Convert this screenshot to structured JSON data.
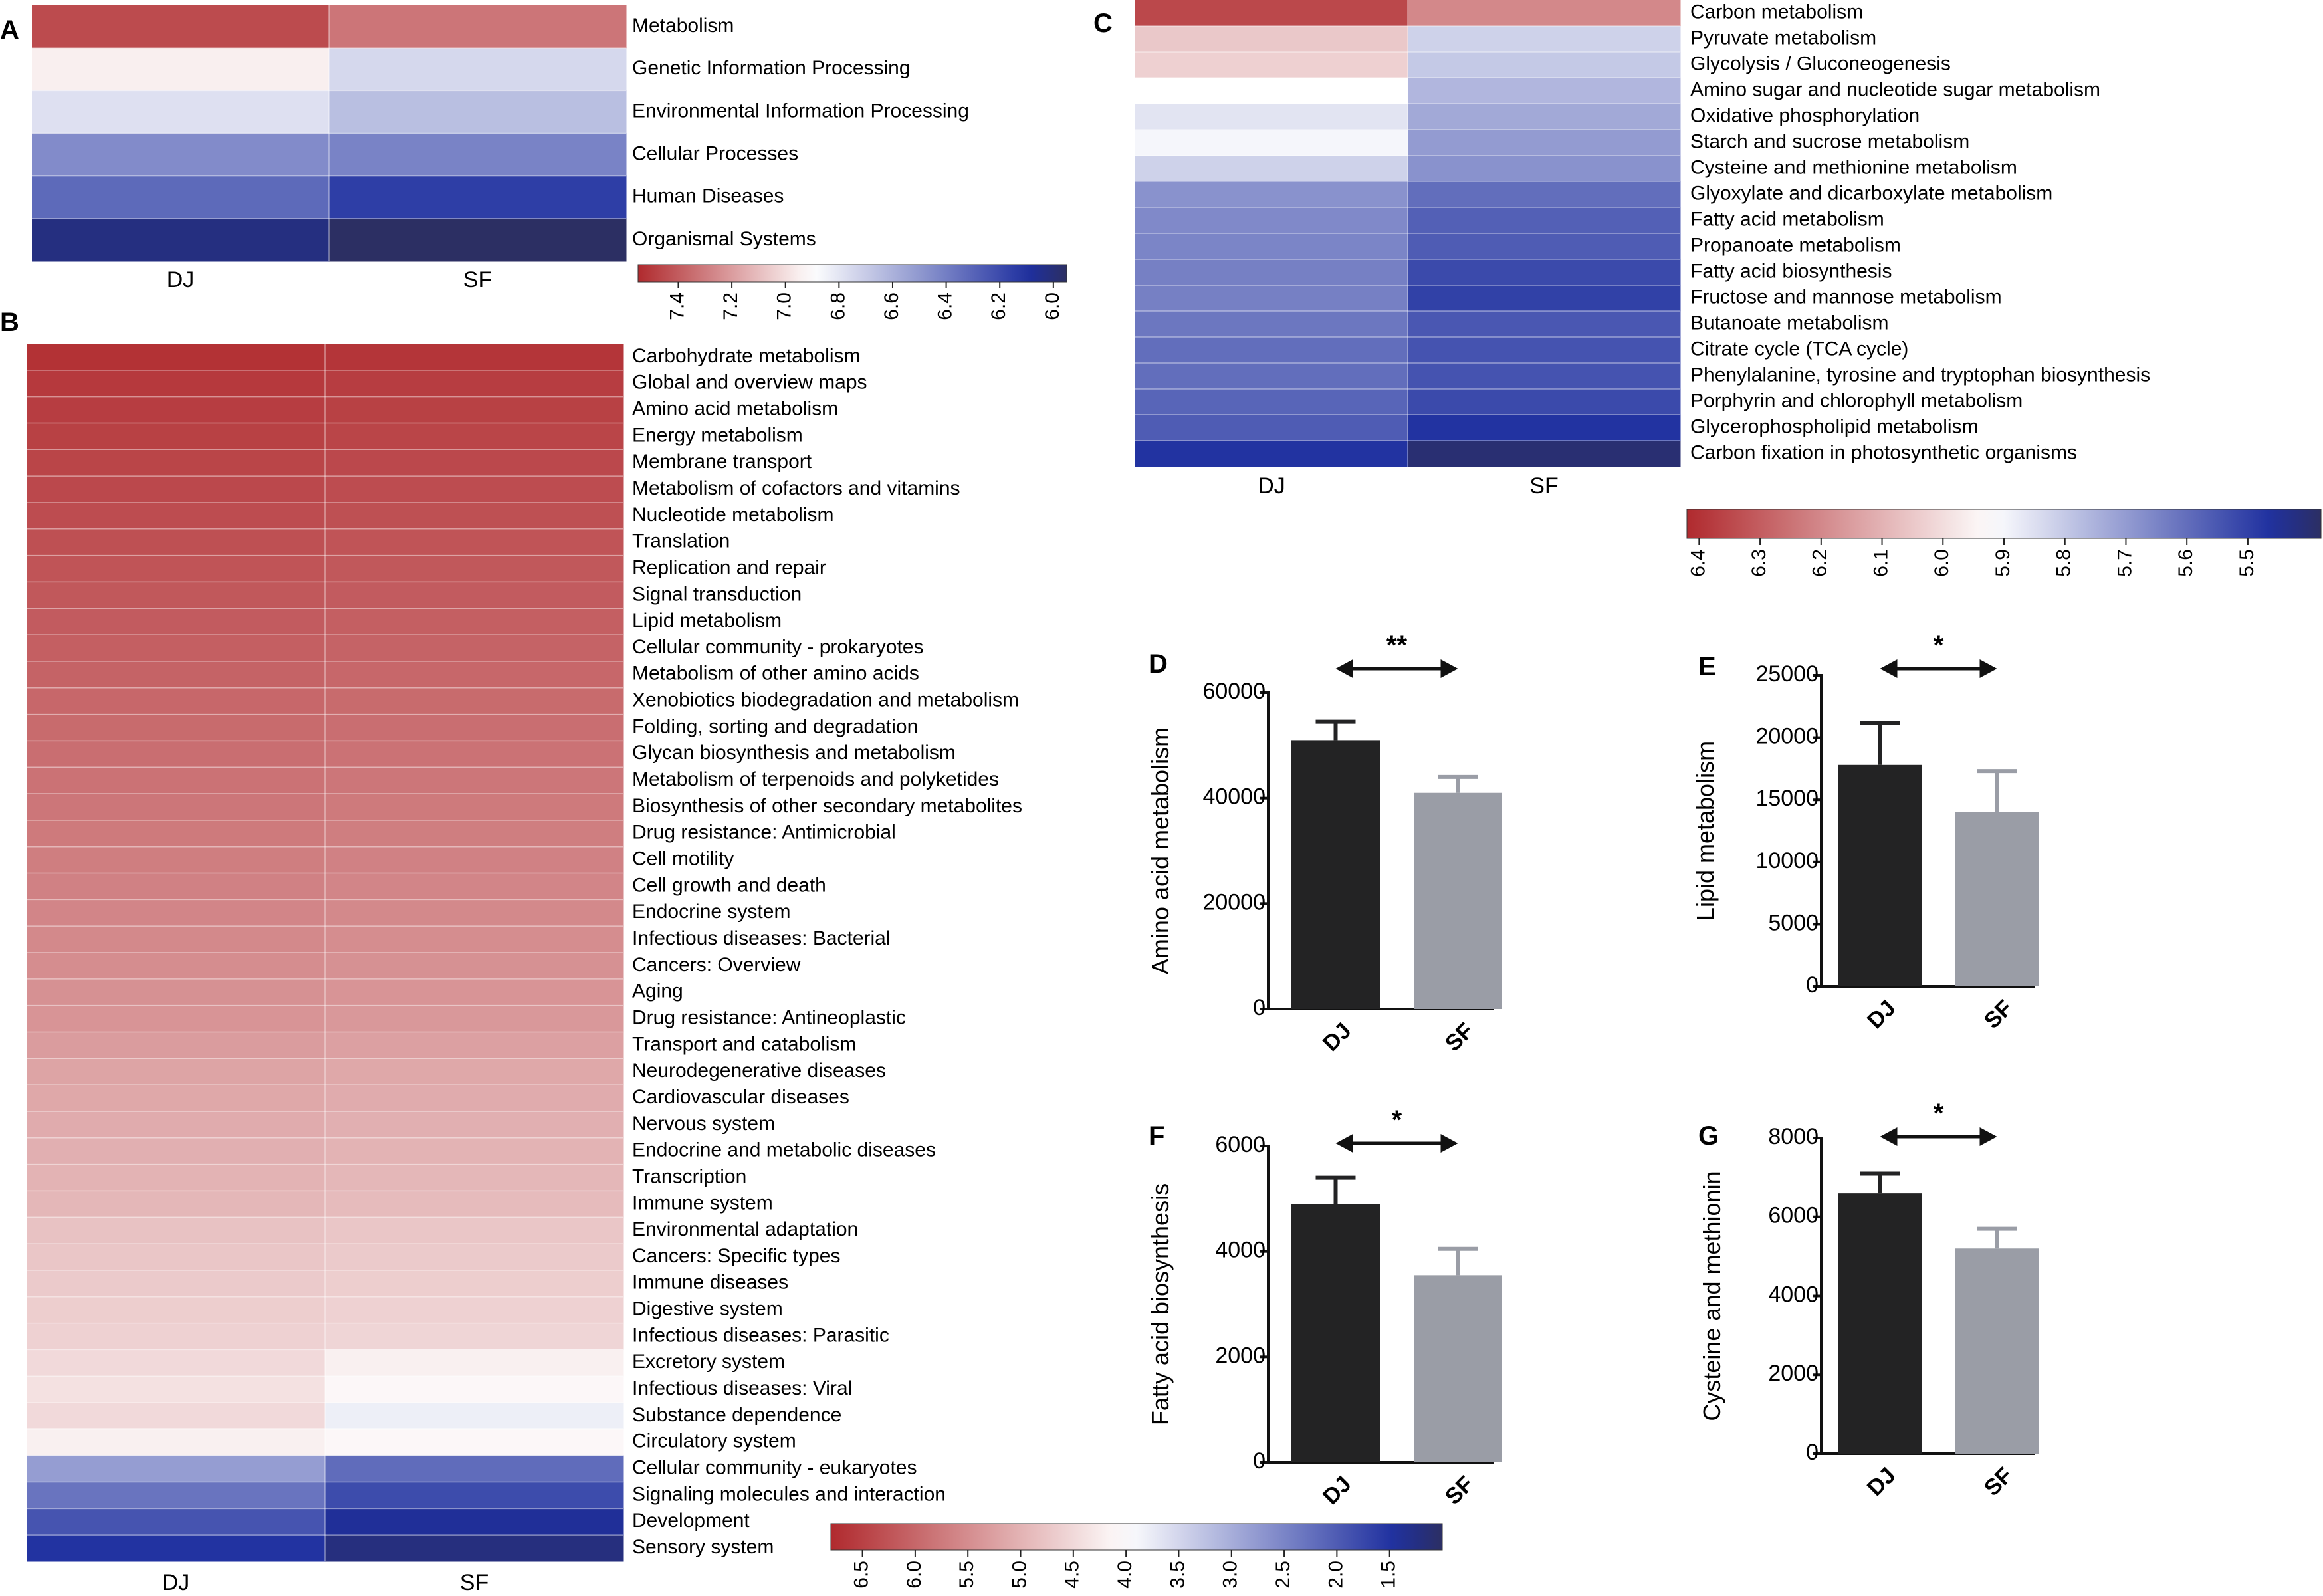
{
  "palette": {
    "heat_red": "#b02a2e",
    "heat_white": "#ffffff",
    "heat_blue": "#1e2f9f",
    "heat_navy": "#2c2f63",
    "bar_dj": "#232324",
    "bar_sf": "#9a9da6"
  },
  "chart_data": [
    {
      "panel": "A",
      "type": "heatmap",
      "columns": [
        "DJ",
        "SF"
      ],
      "rows": [
        "Metabolism",
        "Genetic Information Processing",
        "Environmental Information Processing",
        "Cellular Processes",
        "Human Diseases",
        "Organismal Systems"
      ],
      "values": [
        [
          7.45,
          7.32
        ],
        [
          6.95,
          6.75
        ],
        [
          6.78,
          6.65
        ],
        [
          6.45,
          6.42
        ],
        [
          6.32,
          6.15
        ],
        [
          6.02,
          5.95
        ]
      ],
      "colorbar": {
        "min": 5.95,
        "max": 7.55,
        "ticks": [
          7.4,
          7.2,
          7.0,
          6.8,
          6.6,
          6.4,
          6.2,
          6.0
        ],
        "red_end": 7.55,
        "white_at": 6.9,
        "blue_end": 5.95
      }
    },
    {
      "panel": "B",
      "type": "heatmap",
      "columns": [
        "DJ",
        "SF"
      ],
      "rows": [
        "Carbohydrate metabolism",
        "Global and overview maps",
        "Amino acid metabolism",
        "Energy metabolism",
        "Membrane transport",
        "Metabolism of cofactors and vitamins",
        "Nucleotide metabolism",
        "Translation",
        "Replication and repair",
        "Signal transduction",
        "Lipid metabolism",
        "Cellular community - prokaryotes",
        "Metabolism of other amino acids",
        "Xenobiotics biodegradation and metabolism",
        "Folding, sorting and degradation",
        "Glycan biosynthesis and metabolism",
        "Metabolism of terpenoids and polyketides",
        "Biosynthesis of other secondary metabolites",
        "Drug resistance: Antimicrobial",
        "Cell motility",
        "Cell growth and death",
        "Endocrine system",
        "Infectious diseases: Bacterial",
        "Cancers: Overview",
        "Aging",
        "Drug resistance: Antineoplastic",
        "Transport and catabolism",
        "Neurodegenerative diseases",
        "Cardiovascular diseases",
        "Nervous system",
        "Endocrine and metabolic diseases",
        "Transcription",
        "Immune system",
        "Environmental adaptation",
        "Cancers: Specific types",
        "Immune diseases",
        "Digestive system",
        "Infectious diseases: Parasitic",
        "Excretory system",
        "Infectious diseases: Viral",
        "Substance dependence",
        "Circulatory system",
        "Cellular community - eukaryotes",
        "Signaling molecules and interaction",
        "Development",
        "Sensory system"
      ],
      "values": [
        [
          6.7,
          6.65
        ],
        [
          6.6,
          6.55
        ],
        [
          6.55,
          6.5
        ],
        [
          6.5,
          6.45
        ],
        [
          6.45,
          6.4
        ],
        [
          6.4,
          6.35
        ],
        [
          6.35,
          6.3
        ],
        [
          6.3,
          6.25
        ],
        [
          6.25,
          6.2
        ],
        [
          6.2,
          6.15
        ],
        [
          6.15,
          6.1
        ],
        [
          6.1,
          6.05
        ],
        [
          6.05,
          6.0
        ],
        [
          6.0,
          5.95
        ],
        [
          5.95,
          5.9
        ],
        [
          5.9,
          5.85
        ],
        [
          5.85,
          5.8
        ],
        [
          5.8,
          5.75
        ],
        [
          5.75,
          5.7
        ],
        [
          5.7,
          5.65
        ],
        [
          5.65,
          5.6
        ],
        [
          5.6,
          5.55
        ],
        [
          5.55,
          5.5
        ],
        [
          5.5,
          5.45
        ],
        [
          5.45,
          5.4
        ],
        [
          5.4,
          5.35
        ],
        [
          5.3,
          5.25
        ],
        [
          5.2,
          5.15
        ],
        [
          5.15,
          5.1
        ],
        [
          5.1,
          5.05
        ],
        [
          5.05,
          5.0
        ],
        [
          5.0,
          4.95
        ],
        [
          4.95,
          4.9
        ],
        [
          4.8,
          4.75
        ],
        [
          4.75,
          4.7
        ],
        [
          4.7,
          4.65
        ],
        [
          4.65,
          4.6
        ],
        [
          4.6,
          4.55
        ],
        [
          4.5,
          4.2
        ],
        [
          4.4,
          4.1
        ],
        [
          4.5,
          3.8
        ],
        [
          4.2,
          4.1
        ],
        [
          2.8,
          2.2
        ],
        [
          2.3,
          1.8
        ],
        [
          1.9,
          1.4
        ],
        [
          1.5,
          1.2
        ]
      ],
      "colorbar": {
        "min": 1.0,
        "max": 6.8,
        "ticks": [
          6.5,
          6.0,
          5.5,
          5.0,
          4.5,
          4.0,
          3.5,
          3.0,
          2.5,
          2.0,
          1.5
        ],
        "red_end": 6.8,
        "white_at": 4.0,
        "blue_end": 1.0
      }
    },
    {
      "panel": "C",
      "type": "heatmap",
      "columns": [
        "DJ",
        "SF"
      ],
      "rows": [
        "Carbon metabolism",
        "Pyruvate metabolism",
        "Glycolysis / Gluconeogenesis",
        "Amino sugar and nucleotide sugar metabolism",
        "Oxidative phosphorylation",
        "Starch and sucrose metabolism",
        "Cysteine and methionine metabolism",
        "Glyoxylate and dicarboxylate metabolism",
        "Fatty acid metabolism",
        "Propanoate metabolism",
        "Fatty acid biosynthesis",
        "Fructose and mannose metabolism",
        "Butanoate metabolism",
        "Citrate cycle (TCA cycle)",
        "Phenylalanine, tyrosine and tryptophan biosynthesis",
        "Porphyrin and chlorophyll metabolism",
        "Glycerophospholipid metabolism",
        "Carbon fixation in photosynthetic organisms"
      ],
      "values": [
        [
          6.35,
          6.2
        ],
        [
          6.05,
          5.82
        ],
        [
          6.03,
          5.8
        ],
        [
          5.92,
          5.76
        ],
        [
          5.86,
          5.73
        ],
        [
          5.9,
          5.7
        ],
        [
          5.82,
          5.68
        ],
        [
          5.68,
          5.6
        ],
        [
          5.66,
          5.57
        ],
        [
          5.65,
          5.56
        ],
        [
          5.64,
          5.52
        ],
        [
          5.64,
          5.5
        ],
        [
          5.62,
          5.55
        ],
        [
          5.6,
          5.54
        ],
        [
          5.6,
          5.54
        ],
        [
          5.58,
          5.52
        ],
        [
          5.56,
          5.47
        ],
        [
          5.47,
          5.4
        ]
      ],
      "colorbar": {
        "min": 5.38,
        "max": 6.42,
        "ticks": [
          6.4,
          6.3,
          6.2,
          6.1,
          6.0,
          5.9,
          5.8,
          5.7,
          5.6,
          5.5
        ],
        "red_end": 6.42,
        "white_at": 5.92,
        "blue_end": 5.38
      }
    },
    {
      "panel": "D",
      "type": "bar",
      "categories": [
        "DJ",
        "SF"
      ],
      "values": [
        51000,
        41000
      ],
      "errors": [
        3500,
        3000
      ],
      "ylabel": "Amino acid metabolism",
      "ylim": [
        0,
        60000
      ],
      "yticks": [
        0,
        20000,
        40000,
        60000
      ],
      "significance": "**"
    },
    {
      "panel": "E",
      "type": "bar",
      "categories": [
        "DJ",
        "SF"
      ],
      "values": [
        17800,
        14000
      ],
      "errors": [
        3400,
        3300
      ],
      "ylabel": "Lipid metabolism",
      "ylim": [
        0,
        25000
      ],
      "yticks": [
        0,
        5000,
        10000,
        15000,
        20000,
        25000
      ],
      "significance": "*"
    },
    {
      "panel": "F",
      "type": "bar",
      "categories": [
        "DJ",
        "SF"
      ],
      "values": [
        4900,
        3550
      ],
      "errors": [
        500,
        500
      ],
      "ylabel": "Fatty acid biosynthesis",
      "ylim": [
        0,
        6000
      ],
      "yticks": [
        0,
        2000,
        4000,
        6000
      ],
      "significance": "*"
    },
    {
      "panel": "G",
      "type": "bar",
      "categories": [
        "DJ",
        "SF"
      ],
      "values": [
        6600,
        5200
      ],
      "errors": [
        500,
        500
      ],
      "ylabel": "Cysteine and methionin",
      "ylim": [
        0,
        8000
      ],
      "yticks": [
        0,
        2000,
        4000,
        6000,
        8000
      ],
      "significance": "*"
    }
  ]
}
